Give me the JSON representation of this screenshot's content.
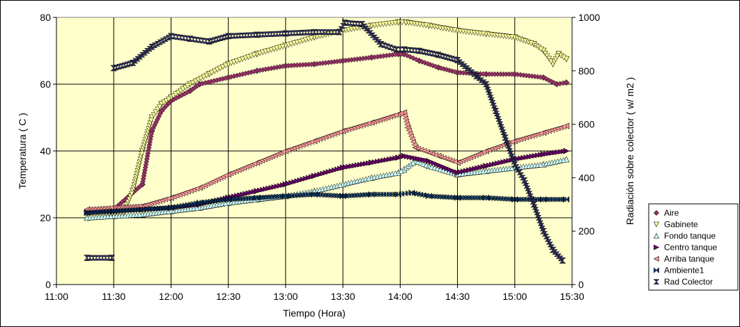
{
  "chart_data": {
    "type": "scatter",
    "title": "",
    "xlabel": "Tiempo (Hora)",
    "ylabel": "Temperatura ( C )",
    "y2label": "Radiación sobre colector ( w/ m2 )",
    "xlim": [
      "11:00",
      "15:30"
    ],
    "ylim": [
      0,
      80
    ],
    "y2lim": [
      0,
      1000
    ],
    "x_ticks": [
      "11:00",
      "11:30",
      "12:00",
      "12:30",
      "13:00",
      "13:30",
      "14:00",
      "14:30",
      "15:00",
      "15:30"
    ],
    "y_ticks": [
      "0",
      "20",
      "40",
      "60",
      "80"
    ],
    "y2_ticks": [
      "0",
      "200",
      "400",
      "600",
      "800",
      "1000"
    ],
    "grid": true,
    "plot_background": "#ffffcc",
    "legend_position": "right",
    "series": [
      {
        "name": "Aire",
        "axis": "left",
        "color": "#993366",
        "marker": "diamond",
        "points": [
          [
            "11:16",
            22
          ],
          [
            "11:30",
            22.5
          ],
          [
            "11:45",
            30
          ],
          [
            "11:50",
            46
          ],
          [
            "11:55",
            52
          ],
          [
            "12:00",
            55
          ],
          [
            "12:10",
            58
          ],
          [
            "12:15",
            60
          ],
          [
            "12:30",
            62
          ],
          [
            "12:45",
            64
          ],
          [
            "13:00",
            65.5
          ],
          [
            "13:15",
            66
          ],
          [
            "13:30",
            67
          ],
          [
            "13:45",
            68
          ],
          [
            "13:59",
            69
          ],
          [
            "14:02",
            69
          ],
          [
            "14:10",
            67
          ],
          [
            "14:20",
            65
          ],
          [
            "14:30",
            63.5
          ],
          [
            "14:45",
            63
          ],
          [
            "15:00",
            63
          ],
          [
            "15:15",
            62
          ],
          [
            "15:22",
            60
          ],
          [
            "15:27",
            60.5
          ]
        ]
      },
      {
        "name": "Gabinete",
        "axis": "left",
        "color": "#ffff99",
        "marker": "triangle-down",
        "points": [
          [
            "11:16",
            21
          ],
          [
            "11:35",
            21.5
          ],
          [
            "11:40",
            28
          ],
          [
            "11:45",
            40
          ],
          [
            "11:50",
            50
          ],
          [
            "11:55",
            54
          ],
          [
            "12:00",
            56
          ],
          [
            "12:10",
            60
          ],
          [
            "12:20",
            63
          ],
          [
            "12:30",
            66
          ],
          [
            "12:45",
            69
          ],
          [
            "13:00",
            71.5
          ],
          [
            "13:15",
            74
          ],
          [
            "13:30",
            76
          ],
          [
            "13:45",
            77.5
          ],
          [
            "13:59",
            78.5
          ],
          [
            "14:03",
            78.5
          ],
          [
            "14:15",
            77.5
          ],
          [
            "14:30",
            76
          ],
          [
            "14:45",
            75
          ],
          [
            "15:00",
            74
          ],
          [
            "15:10",
            72
          ],
          [
            "15:15",
            70
          ],
          [
            "15:20",
            66
          ],
          [
            "15:23",
            69
          ],
          [
            "15:27",
            67.5
          ]
        ]
      },
      {
        "name": "Fondo tanque",
        "axis": "left",
        "color": "#ccffff",
        "marker": "triangle-up",
        "points": [
          [
            "11:16",
            20
          ],
          [
            "11:30",
            20.5
          ],
          [
            "11:45",
            21
          ],
          [
            "12:00",
            22
          ],
          [
            "12:15",
            23
          ],
          [
            "12:30",
            24.5
          ],
          [
            "12:45",
            25.5
          ],
          [
            "13:00",
            26.5
          ],
          [
            "13:15",
            28
          ],
          [
            "13:30",
            30
          ],
          [
            "13:45",
            32
          ],
          [
            "13:59",
            33.5
          ],
          [
            "14:02",
            34.5
          ],
          [
            "14:08",
            37
          ],
          [
            "14:15",
            35.5
          ],
          [
            "14:30",
            33
          ],
          [
            "14:45",
            34
          ],
          [
            "15:00",
            35
          ],
          [
            "15:15",
            36
          ],
          [
            "15:27",
            37.5
          ]
        ]
      },
      {
        "name": "Centro tanque",
        "axis": "left",
        "color": "#660066",
        "marker": "triangle-right",
        "points": [
          [
            "11:16",
            21.5
          ],
          [
            "11:30",
            22
          ],
          [
            "11:45",
            22.5
          ],
          [
            "12:00",
            23
          ],
          [
            "12:15",
            24
          ],
          [
            "12:30",
            26
          ],
          [
            "12:45",
            28
          ],
          [
            "13:00",
            30
          ],
          [
            "13:15",
            32.5
          ],
          [
            "13:30",
            35
          ],
          [
            "13:45",
            36.5
          ],
          [
            "13:59",
            38
          ],
          [
            "14:02",
            38.5
          ],
          [
            "14:15",
            37
          ],
          [
            "14:30",
            33.5
          ],
          [
            "14:45",
            35.5
          ],
          [
            "15:00",
            37.5
          ],
          [
            "15:15",
            39
          ],
          [
            "15:27",
            40
          ]
        ]
      },
      {
        "name": "Arriba tanque",
        "axis": "left",
        "color": "#ff9999",
        "marker": "triangle-left",
        "points": [
          [
            "11:16",
            22.5
          ],
          [
            "11:30",
            23
          ],
          [
            "11:45",
            23.5
          ],
          [
            "12:00",
            26
          ],
          [
            "12:15",
            29
          ],
          [
            "12:30",
            33
          ],
          [
            "12:45",
            36.5
          ],
          [
            "13:00",
            40
          ],
          [
            "13:15",
            43
          ],
          [
            "13:30",
            46
          ],
          [
            "13:45",
            48.5
          ],
          [
            "13:59",
            51
          ],
          [
            "14:02",
            51.5
          ],
          [
            "14:04",
            47
          ],
          [
            "14:08",
            41
          ],
          [
            "14:20",
            38.5
          ],
          [
            "14:30",
            36.5
          ],
          [
            "14:45",
            40
          ],
          [
            "15:00",
            43
          ],
          [
            "15:15",
            45.5
          ],
          [
            "15:27",
            47.5
          ]
        ]
      },
      {
        "name": "Ambiente1",
        "axis": "left",
        "color": "#003366",
        "marker": "bowtie",
        "points": [
          [
            "11:16",
            21.5
          ],
          [
            "11:30",
            22
          ],
          [
            "11:45",
            22.5
          ],
          [
            "12:00",
            23
          ],
          [
            "12:15",
            24.5
          ],
          [
            "12:30",
            25.5
          ],
          [
            "12:45",
            26
          ],
          [
            "13:00",
            26.5
          ],
          [
            "13:15",
            27
          ],
          [
            "13:30",
            26.5
          ],
          [
            "13:45",
            27
          ],
          [
            "13:59",
            27
          ],
          [
            "14:06",
            27.5
          ],
          [
            "14:15",
            26.5
          ],
          [
            "14:30",
            26
          ],
          [
            "14:45",
            26
          ],
          [
            "15:00",
            25.5
          ],
          [
            "15:15",
            25.5
          ],
          [
            "15:27",
            25.5
          ]
        ]
      },
      {
        "name": "Rad Colector",
        "axis": "right",
        "color": "#333366",
        "marker": "hourglass",
        "points": [
          [
            "11:16",
            100
          ],
          [
            "11:29",
            100
          ],
          [
            "11:30",
            810
          ],
          [
            "11:40",
            830
          ],
          [
            "11:50",
            890
          ],
          [
            "12:00",
            930
          ],
          [
            "12:10",
            920
          ],
          [
            "12:20",
            910
          ],
          [
            "12:30",
            930
          ],
          [
            "12:45",
            935
          ],
          [
            "13:00",
            940
          ],
          [
            "13:15",
            945
          ],
          [
            "13:28",
            945
          ],
          [
            "13:31",
            980
          ],
          [
            "13:40",
            975
          ],
          [
            "13:50",
            900
          ],
          [
            "13:58",
            880
          ],
          [
            "14:02",
            880
          ],
          [
            "14:10",
            875
          ],
          [
            "14:20",
            860
          ],
          [
            "14:30",
            840
          ],
          [
            "14:40",
            780
          ],
          [
            "14:45",
            750
          ],
          [
            "14:50",
            650
          ],
          [
            "14:55",
            550
          ],
          [
            "15:00",
            450
          ],
          [
            "15:05",
            390
          ],
          [
            "15:10",
            300
          ],
          [
            "15:15",
            200
          ],
          [
            "15:20",
            130
          ],
          [
            "15:25",
            90
          ]
        ]
      }
    ]
  }
}
